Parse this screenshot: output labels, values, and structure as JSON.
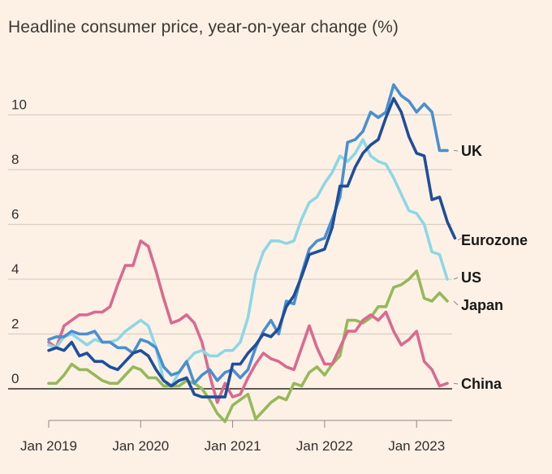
{
  "chart_data": {
    "type": "line",
    "title": "Headline consumer price, year-on-year change (%)",
    "xlabel": "",
    "ylabel": "",
    "ylim": [
      -1.3,
      11.3
    ],
    "y_ticks": [
      0,
      2,
      4,
      6,
      8,
      10
    ],
    "y_tick_labels": [
      "0",
      "2",
      "4",
      "6",
      "8",
      "10"
    ],
    "x_ticks": [
      {
        "date": "2019-01",
        "label": "Jan 2019"
      },
      {
        "date": "2020-01",
        "label": "Jan 2020"
      },
      {
        "date": "2021-01",
        "label": "Jan 2021"
      },
      {
        "date": "2022-01",
        "label": "Jan 2022"
      },
      {
        "date": "2023-01",
        "label": "Jan 2023"
      }
    ],
    "xlim": [
      "2019-01",
      "2023-04"
    ],
    "grid": "horizontal",
    "legend": "direct labels at right",
    "series": [
      {
        "name": "UK",
        "color": "#4a8fd0",
        "points": [
          [
            "2019-01",
            1.8
          ],
          [
            "2019-02",
            1.9
          ],
          [
            "2019-03",
            1.9
          ],
          [
            "2019-04",
            2.1
          ],
          [
            "2019-05",
            2.0
          ],
          [
            "2019-06",
            2.0
          ],
          [
            "2019-07",
            2.1
          ],
          [
            "2019-08",
            1.7
          ],
          [
            "2019-09",
            1.7
          ],
          [
            "2019-10",
            1.5
          ],
          [
            "2019-11",
            1.5
          ],
          [
            "2019-12",
            1.3
          ],
          [
            "2020-01",
            1.8
          ],
          [
            "2020-02",
            1.7
          ],
          [
            "2020-03",
            1.5
          ],
          [
            "2020-04",
            0.8
          ],
          [
            "2020-05",
            0.5
          ],
          [
            "2020-06",
            0.6
          ],
          [
            "2020-07",
            1.0
          ],
          [
            "2020-08",
            0.2
          ],
          [
            "2020-09",
            0.5
          ],
          [
            "2020-10",
            0.7
          ],
          [
            "2020-11",
            0.3
          ],
          [
            "2020-12",
            0.6
          ],
          [
            "2021-01",
            0.7
          ],
          [
            "2021-02",
            0.4
          ],
          [
            "2021-03",
            0.7
          ],
          [
            "2021-04",
            1.5
          ],
          [
            "2021-05",
            2.1
          ],
          [
            "2021-06",
            2.5
          ],
          [
            "2021-07",
            2.0
          ],
          [
            "2021-08",
            3.2
          ],
          [
            "2021-09",
            3.1
          ],
          [
            "2021-10",
            4.2
          ],
          [
            "2021-11",
            5.1
          ],
          [
            "2021-12",
            5.4
          ],
          [
            "2022-01",
            5.5
          ],
          [
            "2022-02",
            6.2
          ],
          [
            "2022-03",
            7.0
          ],
          [
            "2022-04",
            9.0
          ],
          [
            "2022-05",
            9.1
          ],
          [
            "2022-06",
            9.4
          ],
          [
            "2022-07",
            10.1
          ],
          [
            "2022-08",
            9.9
          ],
          [
            "2022-09",
            10.1
          ],
          [
            "2022-10",
            11.1
          ],
          [
            "2022-11",
            10.7
          ],
          [
            "2022-12",
            10.5
          ],
          [
            "2023-01",
            10.1
          ],
          [
            "2023-02",
            10.4
          ],
          [
            "2023-03",
            10.1
          ],
          [
            "2023-04",
            8.7
          ],
          [
            "2023-05",
            8.7
          ]
        ]
      },
      {
        "name": "Eurozone",
        "color": "#1f4e9a",
        "points": [
          [
            "2019-01",
            1.4
          ],
          [
            "2019-02",
            1.5
          ],
          [
            "2019-03",
            1.4
          ],
          [
            "2019-04",
            1.7
          ],
          [
            "2019-05",
            1.2
          ],
          [
            "2019-06",
            1.3
          ],
          [
            "2019-07",
            1.0
          ],
          [
            "2019-08",
            1.0
          ],
          [
            "2019-09",
            0.8
          ],
          [
            "2019-10",
            0.7
          ],
          [
            "2019-11",
            1.0
          ],
          [
            "2019-12",
            1.3
          ],
          [
            "2020-01",
            1.4
          ],
          [
            "2020-02",
            1.2
          ],
          [
            "2020-03",
            0.7
          ],
          [
            "2020-04",
            0.3
          ],
          [
            "2020-05",
            0.1
          ],
          [
            "2020-06",
            0.3
          ],
          [
            "2020-07",
            0.4
          ],
          [
            "2020-08",
            -0.2
          ],
          [
            "2020-09",
            -0.3
          ],
          [
            "2020-10",
            -0.3
          ],
          [
            "2020-11",
            -0.3
          ],
          [
            "2020-12",
            -0.3
          ],
          [
            "2021-01",
            0.9
          ],
          [
            "2021-02",
            0.9
          ],
          [
            "2021-03",
            1.3
          ],
          [
            "2021-04",
            1.6
          ],
          [
            "2021-05",
            2.0
          ],
          [
            "2021-06",
            1.9
          ],
          [
            "2021-07",
            2.2
          ],
          [
            "2021-08",
            3.0
          ],
          [
            "2021-09",
            3.4
          ],
          [
            "2021-10",
            4.1
          ],
          [
            "2021-11",
            4.9
          ],
          [
            "2021-12",
            5.0
          ],
          [
            "2022-01",
            5.1
          ],
          [
            "2022-02",
            5.9
          ],
          [
            "2022-03",
            7.4
          ],
          [
            "2022-04",
            7.4
          ],
          [
            "2022-05",
            8.1
          ],
          [
            "2022-06",
            8.6
          ],
          [
            "2022-07",
            8.9
          ],
          [
            "2022-08",
            9.1
          ],
          [
            "2022-09",
            9.9
          ],
          [
            "2022-10",
            10.6
          ],
          [
            "2022-11",
            10.1
          ],
          [
            "2022-12",
            9.2
          ],
          [
            "2023-01",
            8.6
          ],
          [
            "2023-02",
            8.5
          ],
          [
            "2023-03",
            6.9
          ],
          [
            "2023-04",
            7.0
          ],
          [
            "2023-05",
            6.1
          ],
          [
            "2023-06",
            5.5
          ]
        ]
      },
      {
        "name": "US",
        "color": "#8dd7e6",
        "points": [
          [
            "2019-01",
            1.6
          ],
          [
            "2019-02",
            1.5
          ],
          [
            "2019-03",
            1.9
          ],
          [
            "2019-04",
            2.0
          ],
          [
            "2019-05",
            1.8
          ],
          [
            "2019-06",
            1.6
          ],
          [
            "2019-07",
            1.8
          ],
          [
            "2019-08",
            1.7
          ],
          [
            "2019-09",
            1.7
          ],
          [
            "2019-10",
            1.8
          ],
          [
            "2019-11",
            2.1
          ],
          [
            "2019-12",
            2.3
          ],
          [
            "2020-01",
            2.5
          ],
          [
            "2020-02",
            2.3
          ],
          [
            "2020-03",
            1.5
          ],
          [
            "2020-04",
            0.3
          ],
          [
            "2020-05",
            0.1
          ],
          [
            "2020-06",
            0.6
          ],
          [
            "2020-07",
            1.0
          ],
          [
            "2020-08",
            1.3
          ],
          [
            "2020-09",
            1.4
          ],
          [
            "2020-10",
            1.2
          ],
          [
            "2020-11",
            1.2
          ],
          [
            "2020-12",
            1.4
          ],
          [
            "2021-01",
            1.4
          ],
          [
            "2021-02",
            1.7
          ],
          [
            "2021-03",
            2.6
          ],
          [
            "2021-04",
            4.2
          ],
          [
            "2021-05",
            5.0
          ],
          [
            "2021-06",
            5.4
          ],
          [
            "2021-07",
            5.4
          ],
          [
            "2021-08",
            5.3
          ],
          [
            "2021-09",
            5.4
          ],
          [
            "2021-10",
            6.2
          ],
          [
            "2021-11",
            6.8
          ],
          [
            "2021-12",
            7.0
          ],
          [
            "2022-01",
            7.5
          ],
          [
            "2022-02",
            7.9
          ],
          [
            "2022-03",
            8.5
          ],
          [
            "2022-04",
            8.3
          ],
          [
            "2022-05",
            8.6
          ],
          [
            "2022-06",
            9.1
          ],
          [
            "2022-07",
            8.5
          ],
          [
            "2022-08",
            8.3
          ],
          [
            "2022-09",
            8.2
          ],
          [
            "2022-10",
            7.7
          ],
          [
            "2022-11",
            7.1
          ],
          [
            "2022-12",
            6.5
          ],
          [
            "2023-01",
            6.4
          ],
          [
            "2023-02",
            6.0
          ],
          [
            "2023-03",
            5.0
          ],
          [
            "2023-04",
            4.9
          ],
          [
            "2023-05",
            4.0
          ]
        ]
      },
      {
        "name": "Japan",
        "color": "#96b959",
        "points": [
          [
            "2019-01",
            0.2
          ],
          [
            "2019-02",
            0.2
          ],
          [
            "2019-03",
            0.5
          ],
          [
            "2019-04",
            0.9
          ],
          [
            "2019-05",
            0.7
          ],
          [
            "2019-06",
            0.7
          ],
          [
            "2019-07",
            0.5
          ],
          [
            "2019-08",
            0.3
          ],
          [
            "2019-09",
            0.2
          ],
          [
            "2019-10",
            0.2
          ],
          [
            "2019-11",
            0.5
          ],
          [
            "2019-12",
            0.8
          ],
          [
            "2020-01",
            0.7
          ],
          [
            "2020-02",
            0.4
          ],
          [
            "2020-03",
            0.4
          ],
          [
            "2020-04",
            0.1
          ],
          [
            "2020-05",
            0.1
          ],
          [
            "2020-06",
            0.1
          ],
          [
            "2020-07",
            0.3
          ],
          [
            "2020-08",
            0.2
          ],
          [
            "2020-09",
            0.0
          ],
          [
            "2020-10",
            -0.4
          ],
          [
            "2020-11",
            -0.9
          ],
          [
            "2020-12",
            -1.2
          ],
          [
            "2021-01",
            -0.6
          ],
          [
            "2021-02",
            -0.4
          ],
          [
            "2021-03",
            -0.2
          ],
          [
            "2021-04",
            -1.1
          ],
          [
            "2021-05",
            -0.8
          ],
          [
            "2021-06",
            -0.5
          ],
          [
            "2021-07",
            -0.3
          ],
          [
            "2021-08",
            -0.4
          ],
          [
            "2021-09",
            0.2
          ],
          [
            "2021-10",
            0.1
          ],
          [
            "2021-11",
            0.6
          ],
          [
            "2021-12",
            0.8
          ],
          [
            "2022-01",
            0.5
          ],
          [
            "2022-02",
            0.9
          ],
          [
            "2022-03",
            1.2
          ],
          [
            "2022-04",
            2.5
          ],
          [
            "2022-05",
            2.5
          ],
          [
            "2022-06",
            2.4
          ],
          [
            "2022-07",
            2.6
          ],
          [
            "2022-08",
            3.0
          ],
          [
            "2022-09",
            3.0
          ],
          [
            "2022-10",
            3.7
          ],
          [
            "2022-11",
            3.8
          ],
          [
            "2022-12",
            4.0
          ],
          [
            "2023-01",
            4.3
          ],
          [
            "2023-02",
            3.3
          ],
          [
            "2023-03",
            3.2
          ],
          [
            "2023-04",
            3.5
          ],
          [
            "2023-05",
            3.2
          ]
        ]
      },
      {
        "name": "China",
        "color": "#d96a8f",
        "points": [
          [
            "2019-01",
            1.7
          ],
          [
            "2019-02",
            1.5
          ],
          [
            "2019-03",
            2.3
          ],
          [
            "2019-04",
            2.5
          ],
          [
            "2019-05",
            2.7
          ],
          [
            "2019-06",
            2.7
          ],
          [
            "2019-07",
            2.8
          ],
          [
            "2019-08",
            2.8
          ],
          [
            "2019-09",
            3.0
          ],
          [
            "2019-10",
            3.8
          ],
          [
            "2019-11",
            4.5
          ],
          [
            "2019-12",
            4.5
          ],
          [
            "2020-01",
            5.4
          ],
          [
            "2020-02",
            5.2
          ],
          [
            "2020-03",
            4.3
          ],
          [
            "2020-04",
            3.3
          ],
          [
            "2020-05",
            2.4
          ],
          [
            "2020-06",
            2.5
          ],
          [
            "2020-07",
            2.7
          ],
          [
            "2020-08",
            2.4
          ],
          [
            "2020-09",
            1.7
          ],
          [
            "2020-10",
            0.5
          ],
          [
            "2020-11",
            -0.5
          ],
          [
            "2020-12",
            0.2
          ],
          [
            "2021-01",
            -0.3
          ],
          [
            "2021-02",
            -0.2
          ],
          [
            "2021-03",
            0.4
          ],
          [
            "2021-04",
            0.9
          ],
          [
            "2021-05",
            1.3
          ],
          [
            "2021-06",
            1.1
          ],
          [
            "2021-07",
            1.0
          ],
          [
            "2021-08",
            0.8
          ],
          [
            "2021-09",
            0.7
          ],
          [
            "2021-10",
            1.5
          ],
          [
            "2021-11",
            2.3
          ],
          [
            "2021-12",
            1.5
          ],
          [
            "2022-01",
            0.9
          ],
          [
            "2022-02",
            0.9
          ],
          [
            "2022-03",
            1.5
          ],
          [
            "2022-04",
            2.1
          ],
          [
            "2022-05",
            2.1
          ],
          [
            "2022-06",
            2.5
          ],
          [
            "2022-07",
            2.7
          ],
          [
            "2022-08",
            2.5
          ],
          [
            "2022-09",
            2.8
          ],
          [
            "2022-10",
            2.1
          ],
          [
            "2022-11",
            1.6
          ],
          [
            "2022-12",
            1.8
          ],
          [
            "2023-01",
            2.1
          ],
          [
            "2023-02",
            1.0
          ],
          [
            "2023-03",
            0.7
          ],
          [
            "2023-04",
            0.1
          ],
          [
            "2023-05",
            0.2
          ]
        ]
      }
    ]
  }
}
